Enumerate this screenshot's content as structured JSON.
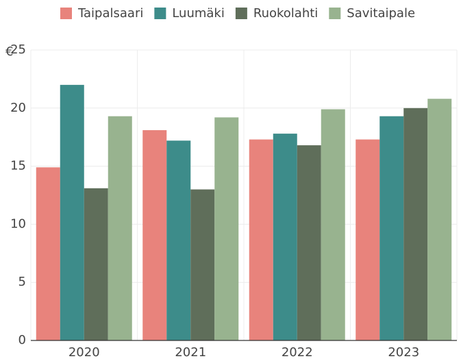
{
  "chart_data": {
    "type": "bar",
    "ylabel": "€",
    "categories": [
      "2020",
      "2021",
      "2022",
      "2023"
    ],
    "series": [
      {
        "name": "Taipalsaari",
        "color": "#e8837c",
        "values": [
          14.9,
          18.1,
          17.3,
          17.3
        ]
      },
      {
        "name": "Luumäki",
        "color": "#3d8c8a",
        "values": [
          22.0,
          17.2,
          17.8,
          19.3
        ]
      },
      {
        "name": "Ruokolahti",
        "color": "#5f6e5a",
        "values": [
          13.1,
          13.0,
          16.8,
          20.0
        ]
      },
      {
        "name": "Savitaipale",
        "color": "#98b38f",
        "values": [
          19.3,
          19.2,
          19.9,
          20.8
        ]
      }
    ],
    "ylim": [
      0,
      25
    ],
    "yticks": [
      0,
      5,
      10,
      15,
      20,
      25
    ],
    "grid": true,
    "legend": "top"
  }
}
